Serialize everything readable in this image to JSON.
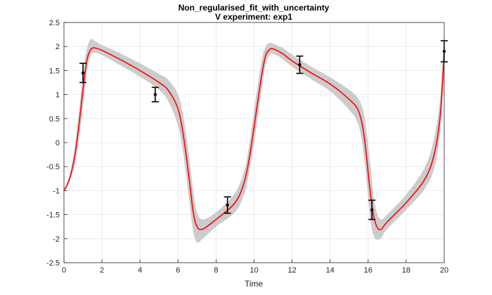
{
  "chart_data": {
    "type": "line",
    "title": "Non_regularised_fit_with_uncertainty",
    "subtitle": "V experiment: exp1",
    "xlabel": "Time",
    "ylabel": "",
    "xlim": [
      0,
      20
    ],
    "ylim": [
      -2.5,
      2.5
    ],
    "xticks": [
      "0",
      "2",
      "4",
      "6",
      "8",
      "10",
      "12",
      "14",
      "16",
      "18",
      "20"
    ],
    "yticks": [
      "-2.5",
      "-2",
      "-1.5",
      "-1",
      "-0.5",
      "0",
      "0.5",
      "1",
      "1.5",
      "2",
      "2.5"
    ],
    "grid": true,
    "colors": {
      "fit": "#ff0000",
      "band": "#cccccc",
      "data": "#000000"
    },
    "series": [
      {
        "kind": "fit",
        "x": [
          0,
          0.2,
          0.4,
          0.6,
          0.8,
          1.0,
          1.2,
          1.4,
          1.6,
          2.0,
          3.0,
          4.0,
          5.0,
          5.5,
          6.0,
          6.3,
          6.6,
          6.8,
          7.0,
          7.3,
          8.0,
          9.0,
          9.5,
          9.8,
          10.1,
          10.4,
          10.6,
          10.8,
          11.0,
          11.5,
          12.0,
          13.0,
          14.0,
          15.0,
          15.5,
          15.8,
          16.1,
          16.3,
          16.5,
          16.7,
          17.0,
          18.0,
          19.0,
          19.5,
          19.8,
          20.0
        ],
        "y": [
          -1.0,
          -0.85,
          -0.6,
          -0.2,
          0.4,
          1.1,
          1.7,
          1.93,
          1.97,
          1.92,
          1.72,
          1.5,
          1.25,
          1.08,
          0.7,
          0.1,
          -0.8,
          -1.45,
          -1.75,
          -1.8,
          -1.6,
          -1.25,
          -0.8,
          -0.2,
          0.6,
          1.4,
          1.8,
          1.93,
          1.95,
          1.85,
          1.7,
          1.45,
          1.22,
          0.9,
          0.65,
          0.1,
          -1.0,
          -1.55,
          -1.78,
          -1.8,
          -1.65,
          -1.25,
          -0.75,
          -0.2,
          0.6,
          1.88
        ]
      },
      {
        "kind": "uncertainty",
        "x": [
          0,
          0.2,
          0.4,
          0.6,
          0.8,
          1.0,
          1.2,
          1.4,
          1.6,
          2.0,
          3.0,
          4.0,
          5.0,
          5.5,
          6.0,
          6.3,
          6.6,
          6.8,
          7.0,
          7.3,
          8.0,
          9.0,
          9.5,
          9.8,
          10.1,
          10.4,
          10.6,
          10.8,
          11.0,
          11.5,
          12.0,
          13.0,
          14.0,
          15.0,
          15.5,
          15.8,
          16.1,
          16.3,
          16.5,
          16.7,
          17.0,
          18.0,
          19.0,
          19.5,
          19.8,
          20.0
        ],
        "upper": [
          -0.98,
          -0.8,
          -0.5,
          0.0,
          0.7,
          1.4,
          1.95,
          2.15,
          2.12,
          2.03,
          1.85,
          1.65,
          1.43,
          1.3,
          1.0,
          0.5,
          -0.35,
          -1.0,
          -1.45,
          -1.6,
          -1.45,
          -1.05,
          -0.55,
          0.1,
          0.95,
          1.7,
          2.0,
          2.07,
          2.06,
          1.97,
          1.83,
          1.58,
          1.36,
          1.1,
          0.9,
          0.55,
          -0.4,
          -1.15,
          -1.5,
          -1.6,
          -1.5,
          -1.08,
          -0.5,
          0.15,
          1.0,
          2.35
        ],
        "lower": [
          -1.02,
          -0.9,
          -0.7,
          -0.42,
          0.1,
          0.75,
          1.45,
          1.8,
          1.87,
          1.82,
          1.6,
          1.37,
          1.1,
          0.85,
          0.35,
          -0.3,
          -1.25,
          -1.85,
          -2.08,
          -2.0,
          -1.75,
          -1.45,
          -1.05,
          -0.5,
          0.25,
          1.1,
          1.6,
          1.82,
          1.85,
          1.74,
          1.58,
          1.32,
          1.07,
          0.68,
          0.35,
          -0.35,
          -1.55,
          -1.95,
          -2.02,
          -1.98,
          -1.8,
          -1.4,
          -0.95,
          -0.5,
          0.25,
          1.45
        ]
      },
      {
        "kind": "data",
        "x": [
          1.0,
          4.8,
          8.6,
          12.4,
          16.2,
          20.0
        ],
        "y": [
          1.45,
          1.0,
          -1.3,
          1.62,
          -1.4,
          1.9
        ],
        "err": [
          0.2,
          0.15,
          0.17,
          0.18,
          0.2,
          0.22
        ]
      }
    ]
  }
}
